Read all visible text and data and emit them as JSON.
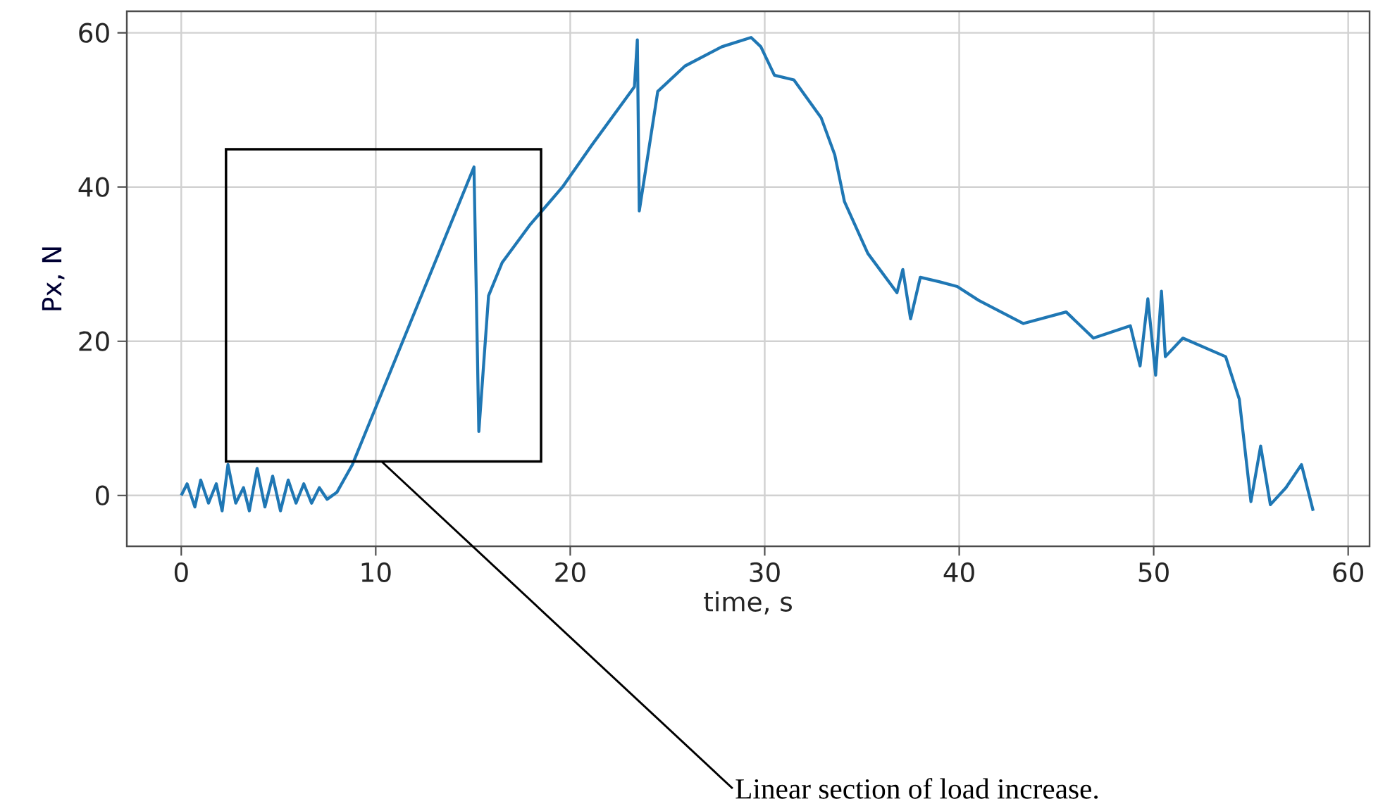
{
  "chart_data": {
    "type": "line",
    "xlabel": "time, s",
    "ylabel": "Px, N",
    "xlim": [
      -2.8,
      61.1
    ],
    "ylim": [
      -6.6,
      62.8
    ],
    "xticks": [
      0,
      10,
      20,
      30,
      40,
      50,
      60
    ],
    "yticks": [
      0,
      20,
      40,
      60
    ],
    "grid": true,
    "annotations": [
      "Linear section of load increase."
    ],
    "series": [
      {
        "color": "#1f77b4",
        "x": [
          0,
          0.3,
          0.7,
          1.0,
          1.4,
          1.8,
          2.1,
          2.4,
          2.8,
          3.2,
          3.5,
          3.9,
          4.3,
          4.7,
          5.1,
          5.5,
          5.9,
          6.3,
          6.7,
          7.1,
          7.5,
          8.0,
          8.8,
          12.15,
          15.05,
          15.3,
          15.8,
          16.5,
          17.9,
          19.6,
          21.1,
          23.3,
          23.45,
          23.55,
          24.5,
          25.9,
          27.8,
          29.3,
          29.8,
          30.5,
          31.5,
          32.9,
          33.6,
          34.1,
          35.3,
          36.8,
          37.1,
          37.5,
          38.0,
          39.0,
          39.9,
          41.0,
          43.3,
          45.5,
          46.9,
          48.8,
          49.3,
          49.7,
          50.1,
          50.4,
          50.6,
          51.5,
          53.7,
          54.4,
          55.0,
          55.5,
          56.0,
          56.8,
          57.6,
          58.2
        ],
        "values": [
          0,
          1.5,
          -1.5,
          2,
          -1,
          1.5,
          -2,
          4,
          -1,
          1,
          -2,
          3.5,
          -1.5,
          2.5,
          -2,
          2,
          -1,
          1.5,
          -1,
          1,
          -0.5,
          0.4,
          4,
          24.7,
          42.6,
          8.3,
          25.9,
          30.2,
          35,
          40,
          45.4,
          53,
          59.1,
          36.9,
          52.4,
          55.7,
          58.2,
          59.4,
          58.2,
          54.5,
          53.9,
          49,
          44.2,
          38.1,
          31.4,
          26.3,
          29.3,
          22.9,
          28.3,
          27.7,
          27.1,
          25.3,
          22.3,
          23.8,
          20.4,
          22,
          16.8,
          25.5,
          15.6,
          26.5,
          18,
          20.4,
          18,
          12.5,
          -0.8,
          6.4,
          -1.2,
          1,
          4,
          -2
        ]
      }
    ]
  }
}
